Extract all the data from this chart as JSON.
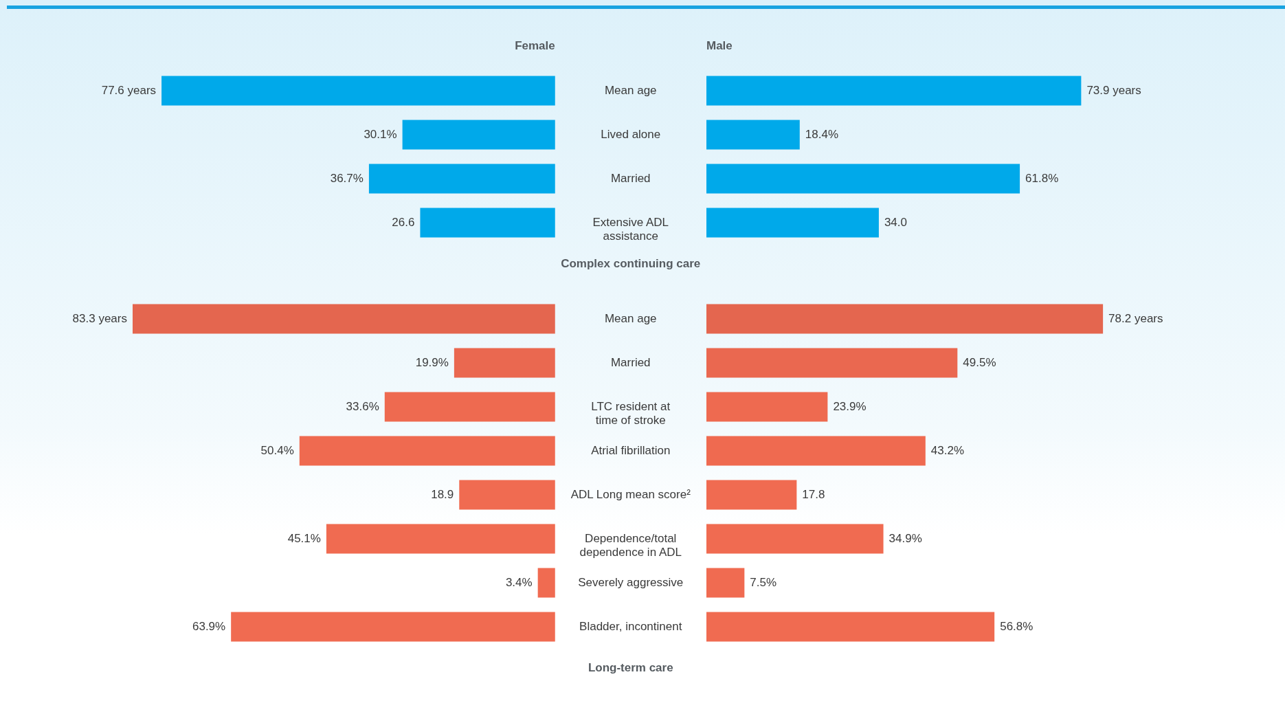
{
  "chart_data": [
    {
      "type": "bar",
      "orientation": "horizontal",
      "title": "Female",
      "categories": [
        "Mean age",
        "Lived alone",
        "Married",
        "Extensive ADL assistance"
      ],
      "values": [
        77.6,
        30.1,
        36.7,
        26.6
      ],
      "value_labels": [
        "77.6 years",
        "30.1%",
        "36.7%",
        "26.6"
      ],
      "colors": [
        "#00a9ea",
        "#00a9ea",
        "#00a9ea",
        "#00a9ea"
      ],
      "tick_labels": "y",
      "annotations": [
        "Complex continuing care"
      ]
    },
    {
      "type": "bar",
      "orientation": "horizontal",
      "title": "Male",
      "categories": [
        null,
        null,
        null,
        null
      ],
      "values": [
        73.9,
        18.4,
        61.8,
        34.0
      ],
      "value_labels": [
        "73.9 years",
        "18.4%",
        "61.8%",
        "34.0"
      ],
      "colors": [
        "#00a9ea",
        "#00a9ea",
        "#00a9ea",
        "#00a9ea"
      ],
      "tick_labels": false
    },
    {
      "type": "bar",
      "orientation": "horizontal",
      "categories": [
        "Mean age",
        "Married",
        "LTC resident at time of stroke",
        "Atrial fibrillation",
        "ADL Long mean score²",
        "Dependence/total dependence in ADL",
        "Severely aggressive",
        "Bladder, incontinent"
      ],
      "values": [
        83.3,
        19.9,
        33.6,
        50.4,
        18.9,
        45.1,
        3.4,
        63.9
      ],
      "value_labels": [
        "83.3 years",
        "19.9%",
        "33.6%",
        "50.4%",
        "18.9",
        "45.1%",
        "3.4%",
        "63.9%"
      ],
      "colors": [
        "#e4664f",
        "#ea6850",
        "#ee6a50",
        "#ef6a50",
        "#f06b51",
        "#f06b51",
        "#f06b51",
        "#f06b51"
      ],
      "tick_labels": "y",
      "annotations": [
        "Long-term care"
      ]
    },
    {
      "type": "bar",
      "orientation": "horizontal",
      "categories": [
        null,
        null,
        null,
        null,
        null,
        null,
        null,
        null
      ],
      "values": [
        78.2,
        49.5,
        23.9,
        43.2,
        17.8,
        34.9,
        7.5,
        56.8
      ],
      "value_labels": [
        "78.2 years",
        "49.5%",
        "23.9%",
        "43.2%",
        "17.8",
        "34.9%",
        "7.5%",
        "56.8%"
      ],
      "colors": [
        "#e4664f",
        "#ea6850",
        "#ee6a50",
        "#ef6a50",
        "#f06b51",
        "#f06b51",
        "#f06b51",
        "#f06b51"
      ],
      "tick_labels": false
    }
  ]
}
